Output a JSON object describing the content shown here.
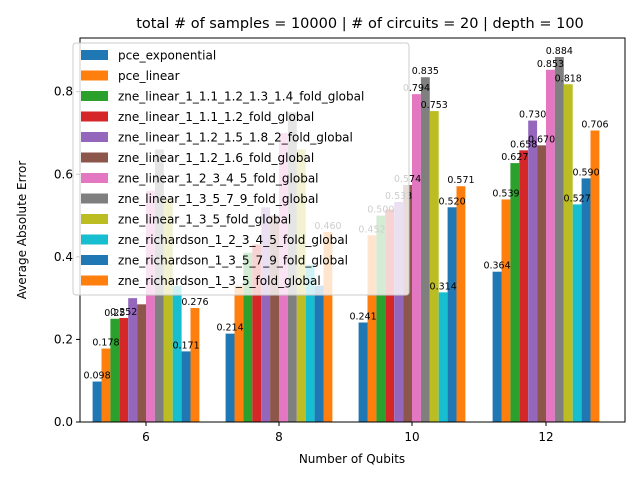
{
  "chart_data": {
    "type": "bar",
    "title": "total # of samples = 10000 | # of circuits = 20 | depth = 100",
    "xlabel": "Number of Qubits",
    "ylabel": "Average Absolute Error",
    "categories": [
      "6",
      "8",
      "10",
      "12"
    ],
    "ylim": [
      0,
      0.93
    ],
    "yticks": [
      "0.0",
      "0.2",
      "0.4",
      "0.6",
      "0.8"
    ],
    "legend_position": "upper-left",
    "grid": false,
    "series": [
      {
        "name": "pce_exponential",
        "color": "#1f77b4",
        "values": [
          0.098,
          0.214,
          0.241,
          0.364
        ],
        "labels": [
          "0.098",
          "0.214",
          "0.241",
          "0.364"
        ]
      },
      {
        "name": "pce_linear",
        "color": "#ff7f0e",
        "values": [
          0.178,
          0.33,
          0.452,
          0.539
        ],
        "labels": [
          "0.178",
          "",
          "0.452",
          "0.539"
        ]
      },
      {
        "name": "zne_linear_1_1.1_1.2_1.3_1.4_fold_global",
        "color": "#2ca02c",
        "values": [
          0.25,
          0.41,
          0.5,
          0.627
        ],
        "labels": [
          "0.25",
          "",
          "0.500",
          "0.627"
        ]
      },
      {
        "name": "zne_linear_1_1.1_1.2_fold_global",
        "color": "#d62728",
        "values": [
          0.252,
          0.43,
          0.515,
          0.658
        ],
        "labels": [
          "0.252",
          "",
          "",
          "0.658"
        ]
      },
      {
        "name": "zne_linear_1_1.2_1.5_1.8_2_fold_global",
        "color": "#9467bd",
        "values": [
          0.3,
          0.52,
          0.533,
          0.73
        ],
        "labels": [
          "",
          "",
          "0.533",
          "0.730"
        ]
      },
      {
        "name": "zne_linear_1_1.2_1.6_fold_global",
        "color": "#8c564b",
        "values": [
          0.285,
          0.5,
          0.574,
          0.67
        ],
        "labels": [
          "",
          "",
          "0.574",
          "0.670"
        ]
      },
      {
        "name": "zne_linear_1_2_3_4_5_fold_global",
        "color": "#e377c2",
        "values": [
          0.56,
          0.7,
          0.794,
          0.853
        ],
        "labels": [
          "",
          "",
          "0.794",
          "0.853"
        ]
      },
      {
        "name": "zne_linear_1_3_5_7_9_fold_global",
        "color": "#7f7f7f",
        "values": [
          0.66,
          0.75,
          0.835,
          0.884
        ],
        "labels": [
          "",
          "",
          "0.835",
          "0.884"
        ]
      },
      {
        "name": "zne_linear_1_3_5_fold_global",
        "color": "#bcbd22",
        "values": [
          0.54,
          0.66,
          0.753,
          0.818
        ],
        "labels": [
          "",
          "",
          "0.753",
          "0.818"
        ]
      },
      {
        "name": "zne_richardson_1_2_3_4_5_fold_global",
        "color": "#17becf",
        "values": [
          0.33,
          0.38,
          0.314,
          0.527
        ],
        "labels": [
          "",
          "",
          "0.314",
          "0.527"
        ]
      },
      {
        "name": "zne_richardson_1_3_5_7_9_fold_global",
        "color": "#1f77b4",
        "values": [
          0.171,
          0.33,
          0.52,
          0.59
        ],
        "labels": [
          "0.171",
          "",
          "0.520",
          "0.590"
        ]
      },
      {
        "name": "zne_richardson_1_3_5_fold_global",
        "color": "#ff7f0e",
        "values": [
          0.276,
          0.46,
          0.571,
          0.706
        ],
        "labels": [
          "0.276",
          "0.460",
          "0.571",
          "0.706"
        ]
      }
    ]
  }
}
